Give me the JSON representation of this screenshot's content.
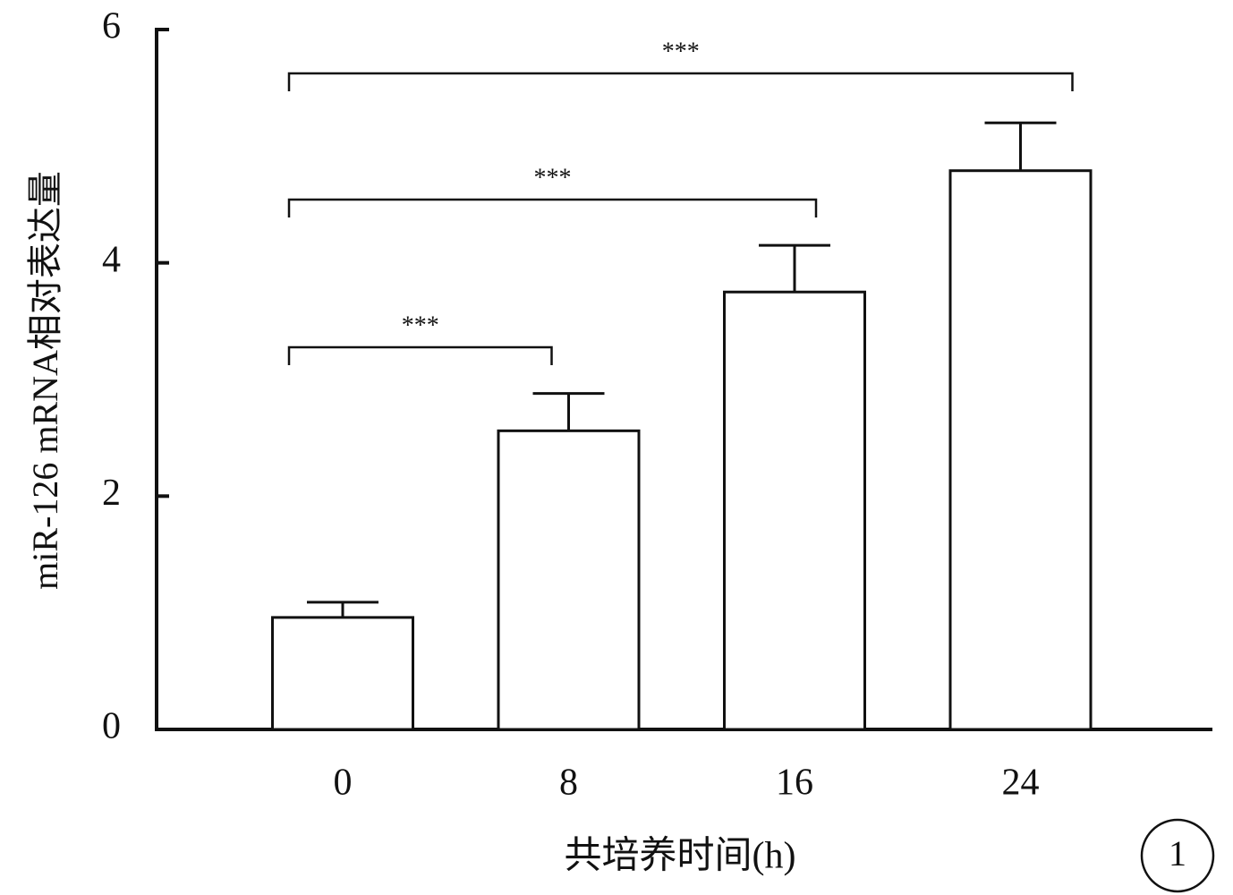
{
  "chart_data": {
    "type": "bar",
    "categories": [
      "0",
      "8",
      "16",
      "24"
    ],
    "values": [
      0.96,
      2.56,
      3.75,
      4.79
    ],
    "errors": [
      0.13,
      0.32,
      0.4,
      0.41
    ],
    "color": "#ffffff",
    "ylim": [
      0,
      6
    ],
    "yticks": [
      0,
      2,
      4,
      6
    ],
    "xlabel": "共培养时间(h)",
    "ylabel": "miR-126 mRNA相对表达量",
    "significance": [
      {
        "from": "0",
        "to": "8",
        "label": "***"
      },
      {
        "from": "0",
        "to": "16",
        "label": "***"
      },
      {
        "from": "0",
        "to": "24",
        "label": "***"
      }
    ],
    "panel_label": "1"
  }
}
